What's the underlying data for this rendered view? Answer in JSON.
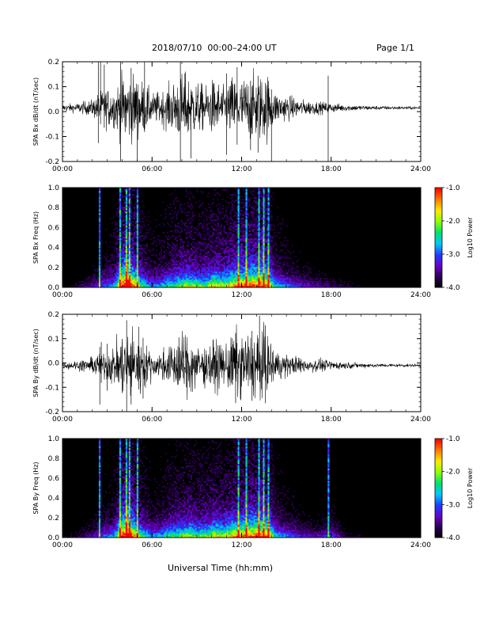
{
  "header": {
    "title": "2018/07/10  00:00–24:00 UT",
    "page": "Page 1/1"
  },
  "footer": {
    "xlabel": "Universal Time (hh:mm)"
  },
  "colors": {
    "trace": "#000000",
    "spectrogram_background": "#000000",
    "colormap": [
      "#000000",
      "#2a004f",
      "#6a00c8",
      "#1f3cff",
      "#00c8ff",
      "#00e070",
      "#8cff00",
      "#ffe800",
      "#ff7a00",
      "#ff0000"
    ]
  },
  "chart_data": [
    {
      "type": "line",
      "name": "bx-dbdt",
      "ylabel": "SPA Bx dB/dt (nT/sec)",
      "xlim": [
        0,
        24
      ],
      "ylim": [
        -0.2,
        0.2
      ],
      "xticks": [
        "00:00",
        "06:00",
        "12:00",
        "18:00",
        "24:00"
      ],
      "yticks": [
        "-0.2",
        "-0.1",
        "0.0",
        "0.1",
        "0.2"
      ],
      "baseline": 0.015,
      "envelope": {
        "x": [
          0,
          1,
          2,
          2.5,
          3,
          3.5,
          4,
          4.4,
          4.8,
          5.2,
          5.6,
          6,
          6.6,
          7.2,
          7.8,
          8.4,
          9,
          9.6,
          10.2,
          10.8,
          11.4,
          12,
          12.6,
          13,
          13.4,
          13.8,
          14.2,
          15,
          16,
          17,
          18,
          19,
          20,
          22,
          24
        ],
        "y": [
          0.02,
          0.03,
          0.05,
          0.1,
          0.12,
          0.12,
          0.2,
          0.2,
          0.2,
          0.18,
          0.14,
          0.09,
          0.1,
          0.14,
          0.2,
          0.2,
          0.16,
          0.13,
          0.18,
          0.12,
          0.2,
          0.18,
          0.2,
          0.2,
          0.2,
          0.2,
          0.1,
          0.08,
          0.05,
          0.04,
          0.03,
          0.02,
          0.015,
          0.01,
          0.008
        ]
      },
      "spikes": [
        2.4,
        2.55,
        2.8,
        3.9,
        4.2,
        4.6,
        5.0,
        5.5,
        7.9,
        8.2,
        8.6,
        11.0,
        11.7,
        12.6,
        13.1,
        13.6,
        14.0,
        17.8
      ]
    },
    {
      "type": "heatmap",
      "name": "bx-spectrogram",
      "ylabel": "SPA Bx Freq (Hz)",
      "xlim": [
        0,
        24
      ],
      "ylim": [
        0,
        1.0
      ],
      "xticks": [
        "00:00",
        "06:00",
        "12:00",
        "18:00",
        "24:00"
      ],
      "yticks": [
        "0.0",
        "0.2",
        "0.4",
        "0.6",
        "0.8",
        "1.0"
      ],
      "colorbar": {
        "label": "Log10 Power",
        "range": [
          -4.0,
          -1.0
        ],
        "ticks": [
          "-1.0",
          "-2.0",
          "-3.0",
          "-4.0"
        ]
      },
      "activity": {
        "x": [
          0,
          1,
          2,
          2.5,
          3,
          3.5,
          4,
          4.4,
          4.8,
          5.2,
          5.6,
          6,
          6.6,
          7.2,
          7.8,
          8.4,
          9,
          9.6,
          10.2,
          10.8,
          11.4,
          12,
          12.6,
          13,
          13.4,
          13.8,
          14.2,
          15,
          16,
          17,
          18,
          19,
          20,
          22,
          24
        ],
        "y": [
          0.1,
          0.15,
          0.25,
          0.35,
          0.4,
          0.45,
          0.9,
          1.0,
          0.8,
          0.6,
          0.5,
          0.4,
          0.45,
          0.55,
          0.6,
          0.65,
          0.6,
          0.6,
          0.7,
          0.65,
          0.75,
          0.8,
          0.85,
          0.85,
          0.9,
          0.8,
          0.5,
          0.4,
          0.3,
          0.25,
          0.2,
          0.15,
          0.1,
          0.08,
          0.05
        ]
      },
      "vertical_streaks": [
        2.5,
        3.9,
        4.3,
        4.5,
        5.0,
        11.8,
        12.3,
        13.2,
        13.5,
        13.8
      ]
    },
    {
      "type": "line",
      "name": "by-dbdt",
      "ylabel": "SPA By dB/dt (nT/sec)",
      "xlim": [
        0,
        24
      ],
      "ylim": [
        -0.2,
        0.2
      ],
      "xticks": [
        "00:00",
        "06:00",
        "12:00",
        "18:00",
        "24:00"
      ],
      "yticks": [
        "-0.2",
        "-0.1",
        "0.0",
        "0.1",
        "0.2"
      ],
      "baseline": -0.01,
      "envelope": {
        "x": [
          0,
          1,
          2,
          2.5,
          3,
          3.5,
          4,
          4.4,
          4.8,
          5.2,
          5.6,
          6,
          6.6,
          7.2,
          7.8,
          8.4,
          9,
          9.6,
          10.2,
          10.8,
          11.4,
          12,
          12.6,
          13,
          13.4,
          13.8,
          14.2,
          15,
          16,
          17,
          18,
          19,
          20,
          22,
          24
        ],
        "y": [
          0.02,
          0.03,
          0.05,
          0.08,
          0.1,
          0.12,
          0.2,
          0.2,
          0.2,
          0.18,
          0.12,
          0.08,
          0.09,
          0.12,
          0.18,
          0.2,
          0.15,
          0.12,
          0.16,
          0.12,
          0.2,
          0.2,
          0.2,
          0.2,
          0.2,
          0.18,
          0.1,
          0.07,
          0.05,
          0.04,
          0.03,
          0.02,
          0.015,
          0.01,
          0.008
        ]
      },
      "spikes": [
        2.5,
        2.6,
        3.0,
        4.0,
        4.3,
        4.6,
        5.1,
        5.4,
        7.8,
        8.3,
        11.6,
        12.7,
        13.2,
        13.6
      ]
    },
    {
      "type": "heatmap",
      "name": "by-spectrogram",
      "ylabel": "SPA By Freq (Hz)",
      "xlim": [
        0,
        24
      ],
      "ylim": [
        0,
        1.0
      ],
      "xticks": [
        "00:00",
        "06:00",
        "12:00",
        "18:00",
        "24:00"
      ],
      "yticks": [
        "0.0",
        "0.2",
        "0.4",
        "0.6",
        "0.8",
        "1.0"
      ],
      "colorbar": {
        "label": "Log10 Power",
        "range": [
          -4.0,
          -1.0
        ],
        "ticks": [
          "-1.0",
          "-2.0",
          "-3.0",
          "-4.0"
        ]
      },
      "activity": {
        "x": [
          0,
          1,
          2,
          2.5,
          3,
          3.5,
          4,
          4.4,
          4.8,
          5.2,
          5.6,
          6,
          6.6,
          7.2,
          7.8,
          8.4,
          9,
          9.6,
          10.2,
          10.8,
          11.4,
          12,
          12.6,
          13,
          13.4,
          13.8,
          14.2,
          15,
          16,
          17,
          18,
          19,
          20,
          22,
          24
        ],
        "y": [
          0.1,
          0.15,
          0.25,
          0.35,
          0.4,
          0.45,
          0.9,
          1.0,
          0.8,
          0.6,
          0.5,
          0.4,
          0.45,
          0.55,
          0.6,
          0.65,
          0.6,
          0.6,
          0.7,
          0.65,
          0.75,
          0.8,
          0.85,
          0.85,
          0.9,
          0.8,
          0.5,
          0.4,
          0.3,
          0.25,
          0.35,
          0.15,
          0.1,
          0.08,
          0.05
        ]
      },
      "vertical_streaks": [
        2.5,
        3.9,
        4.3,
        4.5,
        5.0,
        11.8,
        12.3,
        13.2,
        13.5,
        13.8,
        17.8
      ]
    }
  ]
}
